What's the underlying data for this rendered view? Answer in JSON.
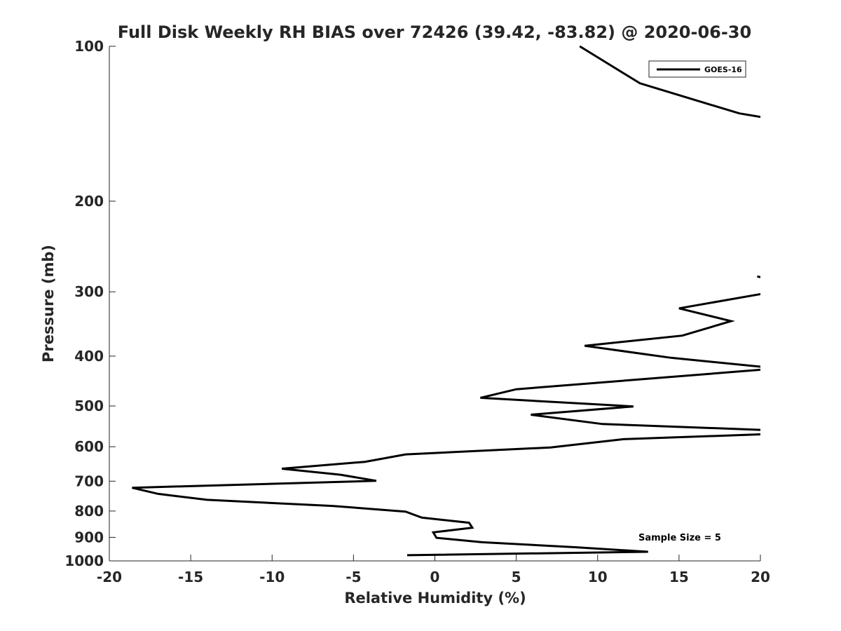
{
  "chart_data": {
    "type": "line",
    "title": "Full Disk Weekly RH BIAS over 72426 (39.42, -83.82) @ 2020-06-30",
    "xlabel": "Relative Humidity (%)",
    "ylabel": "Pressure (mb)",
    "xlim": [
      -20,
      20
    ],
    "ylim": [
      100,
      1000
    ],
    "y_scale": "log",
    "y_reversed": true,
    "grid": false,
    "x_ticks": [
      -20,
      -15,
      -10,
      -5,
      0,
      5,
      10,
      15,
      20
    ],
    "y_ticks": [
      100,
      200,
      300,
      400,
      500,
      600,
      700,
      800,
      900,
      1000
    ],
    "legend": {
      "position": "top-right",
      "entries": [
        "GOES-16"
      ]
    },
    "annotation": "Sample Size = 5",
    "series": [
      {
        "name": "GOES-16",
        "color": "#000000",
        "points": [
          [
            8.9,
            100
          ],
          [
            12.6,
            118
          ],
          [
            18.7,
            135
          ],
          [
            20.5,
            138
          ],
          null,
          [
            19.8,
            280
          ],
          [
            20.0,
            281
          ],
          null,
          [
            20.3,
            302
          ],
          [
            15.0,
            323
          ],
          [
            18.2,
            342
          ],
          [
            15.2,
            365
          ],
          [
            9.2,
            382
          ],
          [
            14.5,
            403
          ],
          [
            20.5,
            421
          ],
          [
            20.5,
            424
          ],
          [
            5.0,
            464
          ],
          [
            2.8,
            482
          ],
          [
            12.2,
            501
          ],
          [
            5.9,
            520
          ],
          [
            10.3,
            542
          ],
          [
            20.5,
            557
          ],
          [
            20.5,
            567
          ],
          [
            11.6,
            580
          ],
          [
            7.1,
            602
          ],
          [
            -1.8,
            621
          ],
          [
            -4.3,
            642
          ],
          [
            -9.4,
            662
          ],
          [
            -5.8,
            680
          ],
          [
            -3.6,
            699
          ],
          [
            -18.6,
            721
          ],
          [
            -17.0,
            741
          ],
          [
            -14.0,
            761
          ],
          [
            -6.3,
            782
          ],
          [
            -1.8,
            802
          ],
          [
            -0.8,
            824
          ],
          [
            2.1,
            843
          ],
          [
            2.3,
            862
          ],
          [
            -0.1,
            880
          ],
          [
            0.1,
            902
          ],
          [
            2.9,
            920
          ],
          [
            8.7,
            941
          ],
          [
            13.1,
            960
          ],
          [
            -1.7,
            975
          ]
        ]
      }
    ]
  }
}
